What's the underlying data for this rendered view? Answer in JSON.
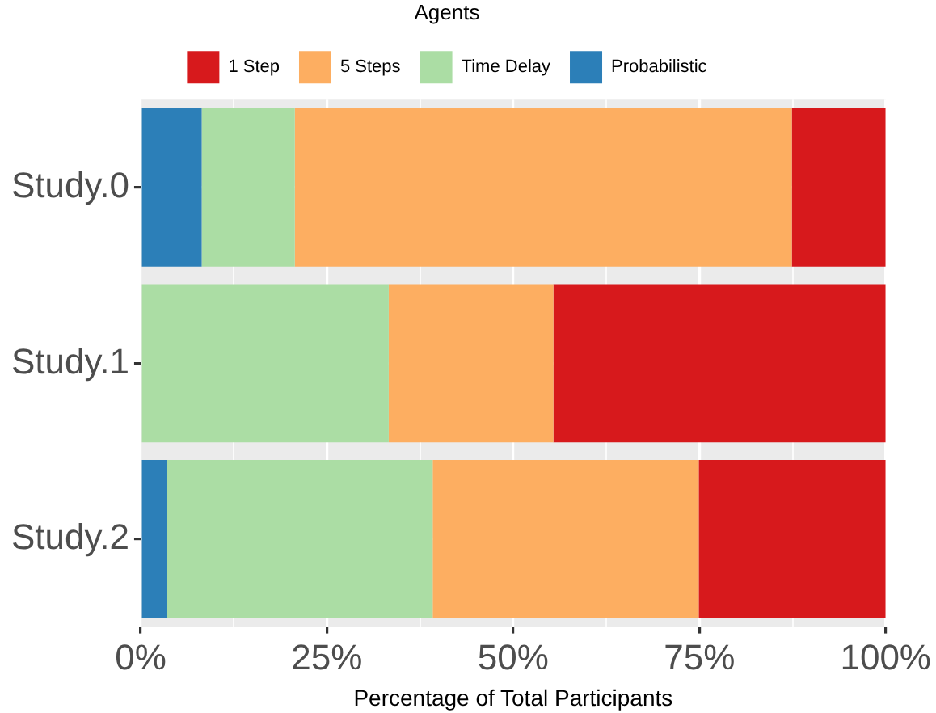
{
  "chart_data": {
    "type": "bar",
    "orientation": "horizontal",
    "stacked": true,
    "xlabel": "Percentage of Total Participants",
    "legend_title": "Agents",
    "legend": "top",
    "categories": [
      "Study.0",
      "Study.1",
      "Study.2"
    ],
    "series": [
      {
        "name": "Probabilistic",
        "color": "#2c7fb8",
        "values": [
          8.2,
          0,
          3.5
        ]
      },
      {
        "name": "Time Delay",
        "color": "#abdda4",
        "values": [
          12.5,
          33.3,
          35.7
        ]
      },
      {
        "name": "5 Steps",
        "color": "#fdae61",
        "values": [
          66.7,
          22.1,
          35.7
        ]
      },
      {
        "name": "1 Step",
        "color": "#d7191c",
        "values": [
          12.6,
          44.6,
          25.1
        ]
      }
    ],
    "xlim": [
      0,
      100
    ],
    "xticks": [
      {
        "value": 0,
        "label": "0%"
      },
      {
        "value": 12.5,
        "label": null
      },
      {
        "value": 25,
        "label": "25%"
      },
      {
        "value": 37.5,
        "label": null
      },
      {
        "value": 50,
        "label": "50%"
      },
      {
        "value": 62.5,
        "label": null
      },
      {
        "value": 75,
        "label": "75%"
      },
      {
        "value": 87.5,
        "label": null
      },
      {
        "value": 100,
        "label": "100%"
      }
    ],
    "grid": true
  }
}
